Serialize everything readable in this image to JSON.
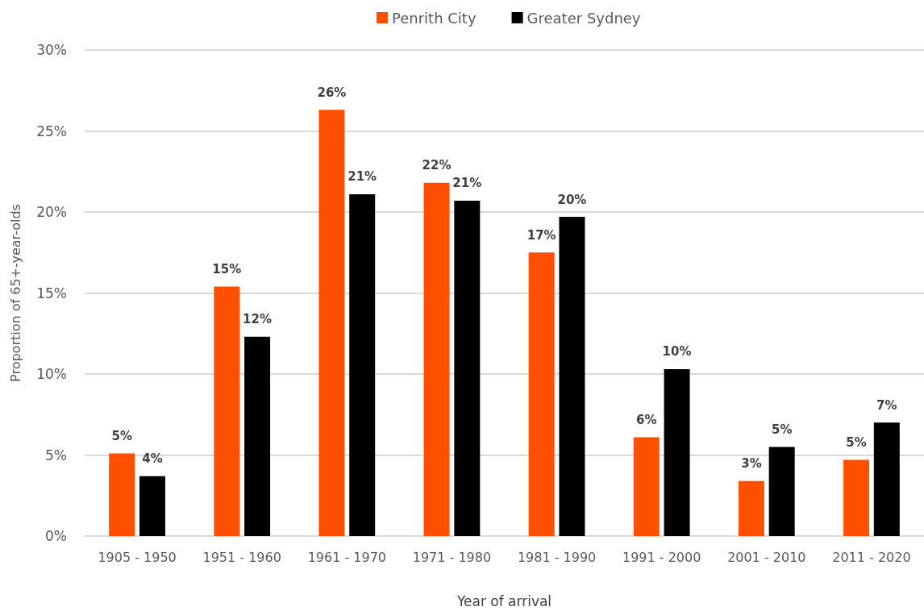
{
  "chart_data": {
    "type": "bar",
    "categories": [
      "1905 - 1950",
      "1951 - 1960",
      "1961 - 1970",
      "1971 - 1980",
      "1981 - 1990",
      "1991 - 2000",
      "2001 - 2010",
      "2011 - 2020"
    ],
    "series": [
      {
        "name": "Penrith City",
        "color": "#fe5000",
        "values": [
          5.1,
          15.4,
          26.3,
          21.8,
          17.5,
          6.1,
          3.4,
          4.7
        ],
        "value_labels": [
          "5%",
          "15%",
          "26%",
          "22%",
          "17%",
          "6%",
          "3%",
          "5%"
        ]
      },
      {
        "name": "Greater Sydney",
        "color": "#000000",
        "values": [
          3.7,
          12.3,
          21.1,
          20.7,
          19.7,
          10.3,
          5.5,
          7.0
        ],
        "value_labels": [
          "4%",
          "12%",
          "21%",
          "21%",
          "20%",
          "10%",
          "5%",
          "7%"
        ]
      }
    ],
    "xlabel": "Year of arrival",
    "ylabel": "Proportion of 65+-year-olds",
    "ylim": [
      0,
      30
    ],
    "yticks": [
      {
        "value": 0,
        "label": "0%"
      },
      {
        "value": 5,
        "label": "5%"
      },
      {
        "value": 10,
        "label": "10%"
      },
      {
        "value": 15,
        "label": "15%"
      },
      {
        "value": 20,
        "label": "20%"
      },
      {
        "value": 25,
        "label": "25%"
      },
      {
        "value": 30,
        "label": "30%"
      }
    ],
    "grid": "y",
    "legend": "top"
  }
}
